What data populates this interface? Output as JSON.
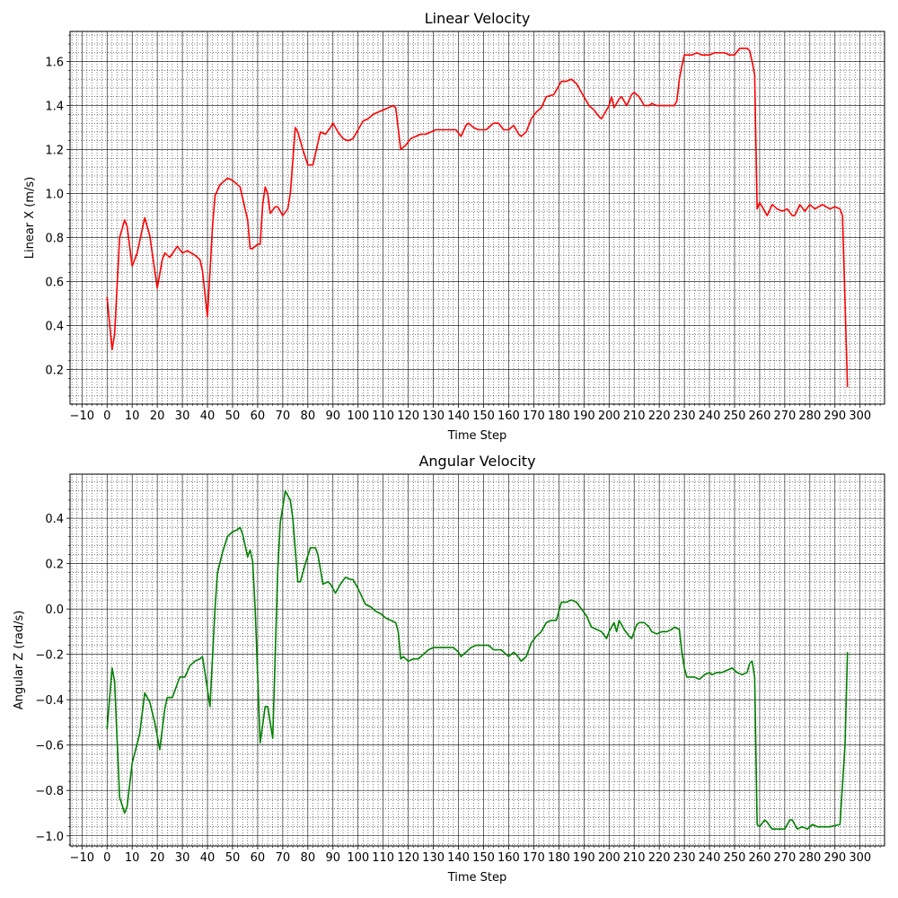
{
  "chart_data": [
    {
      "type": "line",
      "title": "Linear Velocity",
      "x_label": "Time Step",
      "y_label": "Linear X (m/s)",
      "color": "#ff0000",
      "grid": true,
      "minor_grid": true,
      "xlim": [
        -14.75,
        309.75
      ],
      "ylim": [
        0.043,
        1.737
      ],
      "xticks": [
        {
          "value": -10,
          "label": "−10"
        },
        0,
        10,
        20,
        30,
        40,
        50,
        60,
        70,
        80,
        90,
        100,
        110,
        120,
        130,
        140,
        150,
        160,
        170,
        180,
        190,
        200,
        210,
        220,
        230,
        240,
        250,
        260,
        270,
        280,
        290,
        300
      ],
      "yticks": [
        0.2,
        0.4,
        0.6,
        0.8,
        {
          "value": 1.0,
          "label": "1.0"
        },
        1.2,
        1.4,
        1.6
      ],
      "x": [
        0,
        2,
        3,
        5,
        7,
        8,
        10,
        12,
        15,
        17,
        20,
        22,
        23,
        25,
        28,
        30,
        32,
        35,
        37,
        38,
        40,
        42,
        43,
        45,
        48,
        50,
        53,
        56,
        57,
        58,
        60,
        61,
        62,
        63,
        64,
        65,
        67,
        68,
        70,
        72,
        73,
        75,
        76,
        78,
        80,
        82,
        83,
        85,
        87,
        89,
        90,
        92,
        94,
        96,
        98,
        100,
        102,
        104,
        106,
        108,
        110,
        112,
        114,
        115,
        117,
        119,
        121,
        123,
        125,
        127,
        129,
        131,
        139,
        141,
        143,
        144,
        146,
        148,
        151,
        154,
        156,
        158,
        160,
        162,
        164,
        165,
        167,
        169,
        171,
        173,
        175,
        178,
        181,
        183,
        185,
        187,
        189,
        192,
        194,
        196,
        197,
        199,
        200,
        201,
        202,
        204,
        205,
        207,
        209,
        210,
        212,
        214,
        216,
        217,
        219,
        226,
        227,
        228,
        229,
        230,
        233,
        235,
        237,
        240,
        242,
        246,
        248,
        250,
        252,
        255,
        256,
        257,
        258,
        259,
        260,
        262,
        263,
        265,
        267,
        269,
        271,
        273,
        274,
        276,
        278,
        280,
        282,
        285,
        288,
        290,
        292,
        293,
        295
      ],
      "values": [
        0.53,
        0.29,
        0.36,
        0.8,
        0.88,
        0.85,
        0.67,
        0.73,
        0.89,
        0.81,
        0.57,
        0.7,
        0.73,
        0.71,
        0.76,
        0.73,
        0.74,
        0.72,
        0.7,
        0.65,
        0.44,
        0.85,
        0.99,
        1.04,
        1.07,
        1.06,
        1.03,
        0.88,
        0.75,
        0.75,
        0.77,
        0.77,
        0.95,
        1.03,
        1.0,
        0.91,
        0.94,
        0.94,
        0.9,
        0.93,
        1.0,
        1.3,
        1.28,
        1.2,
        1.13,
        1.13,
        1.18,
        1.28,
        1.27,
        1.3,
        1.32,
        1.28,
        1.25,
        1.24,
        1.25,
        1.29,
        1.33,
        1.34,
        1.36,
        1.37,
        1.38,
        1.39,
        1.4,
        1.39,
        1.2,
        1.22,
        1.25,
        1.26,
        1.27,
        1.27,
        1.28,
        1.29,
        1.29,
        1.26,
        1.31,
        1.32,
        1.3,
        1.29,
        1.29,
        1.32,
        1.32,
        1.29,
        1.29,
        1.31,
        1.27,
        1.26,
        1.28,
        1.34,
        1.37,
        1.39,
        1.44,
        1.45,
        1.51,
        1.51,
        1.52,
        1.5,
        1.46,
        1.4,
        1.38,
        1.35,
        1.34,
        1.38,
        1.4,
        1.44,
        1.39,
        1.43,
        1.44,
        1.4,
        1.45,
        1.46,
        1.44,
        1.4,
        1.4,
        1.41,
        1.4,
        1.4,
        1.42,
        1.52,
        1.58,
        1.63,
        1.63,
        1.64,
        1.63,
        1.63,
        1.64,
        1.64,
        1.63,
        1.63,
        1.66,
        1.66,
        1.65,
        1.6,
        1.54,
        0.93,
        0.96,
        0.92,
        0.9,
        0.95,
        0.93,
        0.92,
        0.93,
        0.9,
        0.9,
        0.95,
        0.92,
        0.95,
        0.93,
        0.95,
        0.93,
        0.94,
        0.93,
        0.9,
        0.12
      ]
    },
    {
      "type": "line",
      "title": "Angular Velocity",
      "x_label": "Time Step",
      "y_label": "Angular Z (rad/s)",
      "color": "#008000",
      "grid": true,
      "minor_grid": true,
      "xlim": [
        -14.75,
        309.75
      ],
      "ylim": [
        -1.0445,
        0.5945
      ],
      "xticks": [
        {
          "value": -10,
          "label": "−10"
        },
        0,
        10,
        20,
        30,
        40,
        50,
        60,
        70,
        80,
        90,
        100,
        110,
        120,
        130,
        140,
        150,
        160,
        170,
        180,
        190,
        200,
        210,
        220,
        230,
        240,
        250,
        260,
        270,
        280,
        290,
        300
      ],
      "yticks": [
        {
          "value": -1.0,
          "label": "−1.0"
        },
        {
          "value": -0.8,
          "label": "−0.8"
        },
        {
          "value": -0.6,
          "label": "−0.6"
        },
        {
          "value": -0.4,
          "label": "−0.4"
        },
        {
          "value": -0.2,
          "label": "−0.2"
        },
        {
          "value": 0,
          "label": "0.0"
        },
        0.2,
        0.4
      ],
      "x": [
        0,
        2,
        3,
        5,
        7,
        8,
        10,
        13,
        15,
        17,
        19,
        21,
        23,
        24,
        26,
        28,
        29,
        31,
        33,
        35,
        37,
        38,
        39,
        41,
        43,
        44,
        46,
        48,
        50,
        52,
        53,
        54,
        56,
        57,
        58,
        59,
        61,
        63,
        64,
        66,
        68,
        69,
        71,
        73,
        74,
        76,
        77,
        79,
        81,
        83,
        84,
        86,
        88,
        89,
        91,
        93,
        95,
        97,
        98,
        100,
        103,
        105,
        107,
        109,
        111,
        113,
        115,
        116,
        117,
        118,
        120,
        122,
        124,
        126,
        128,
        130,
        138,
        140,
        141,
        143,
        145,
        147,
        152,
        154,
        157,
        160,
        162,
        163,
        165,
        167,
        169,
        171,
        173,
        175,
        177,
        179,
        181,
        183,
        185,
        187,
        189,
        191,
        193,
        195,
        197,
        199,
        200,
        202,
        203,
        204,
        206,
        208,
        209,
        211,
        212,
        214,
        216,
        217,
        219,
        221,
        223,
        225,
        226,
        228,
        229,
        230,
        231,
        234,
        236,
        238,
        240,
        241,
        243,
        245,
        247,
        249,
        251,
        253,
        255,
        256,
        257,
        258,
        259,
        260,
        262,
        263,
        265,
        270,
        272,
        273,
        275,
        277,
        279,
        281,
        283,
        285,
        288,
        292,
        294,
        295
      ],
      "values": [
        -0.53,
        -0.26,
        -0.32,
        -0.83,
        -0.9,
        -0.87,
        -0.68,
        -0.55,
        -0.37,
        -0.41,
        -0.5,
        -0.62,
        -0.44,
        -0.39,
        -0.39,
        -0.33,
        -0.3,
        -0.3,
        -0.25,
        -0.23,
        -0.22,
        -0.21,
        -0.28,
        -0.43,
        0.0,
        0.16,
        0.25,
        0.32,
        0.34,
        0.35,
        0.36,
        0.33,
        0.23,
        0.26,
        0.21,
        0.0,
        -0.59,
        -0.43,
        -0.43,
        -0.57,
        0.17,
        0.38,
        0.52,
        0.48,
        0.4,
        0.12,
        0.12,
        0.2,
        0.27,
        0.27,
        0.24,
        0.11,
        0.12,
        0.11,
        0.07,
        0.11,
        0.14,
        0.13,
        0.13,
        0.09,
        0.02,
        0.01,
        -0.01,
        -0.02,
        -0.04,
        -0.05,
        -0.06,
        -0.1,
        -0.22,
        -0.21,
        -0.23,
        -0.22,
        -0.22,
        -0.2,
        -0.18,
        -0.17,
        -0.17,
        -0.19,
        -0.21,
        -0.19,
        -0.17,
        -0.16,
        -0.16,
        -0.18,
        -0.18,
        -0.21,
        -0.19,
        -0.2,
        -0.23,
        -0.21,
        -0.15,
        -0.12,
        -0.1,
        -0.06,
        -0.05,
        -0.05,
        0.03,
        0.03,
        0.04,
        0.03,
        0.0,
        -0.03,
        -0.08,
        -0.09,
        -0.1,
        -0.13,
        -0.1,
        -0.06,
        -0.1,
        -0.05,
        -0.09,
        -0.12,
        -0.13,
        -0.07,
        -0.06,
        -0.06,
        -0.08,
        -0.1,
        -0.11,
        -0.1,
        -0.1,
        -0.09,
        -0.08,
        -0.09,
        -0.19,
        -0.26,
        -0.3,
        -0.3,
        -0.31,
        -0.29,
        -0.28,
        -0.29,
        -0.28,
        -0.28,
        -0.27,
        -0.26,
        -0.28,
        -0.29,
        -0.28,
        -0.24,
        -0.23,
        -0.3,
        -0.95,
        -0.96,
        -0.93,
        -0.94,
        -0.97,
        -0.97,
        -0.93,
        -0.93,
        -0.97,
        -0.96,
        -0.97,
        -0.95,
        -0.96,
        -0.96,
        -0.96,
        -0.95,
        -0.6,
        -0.19
      ]
    }
  ]
}
